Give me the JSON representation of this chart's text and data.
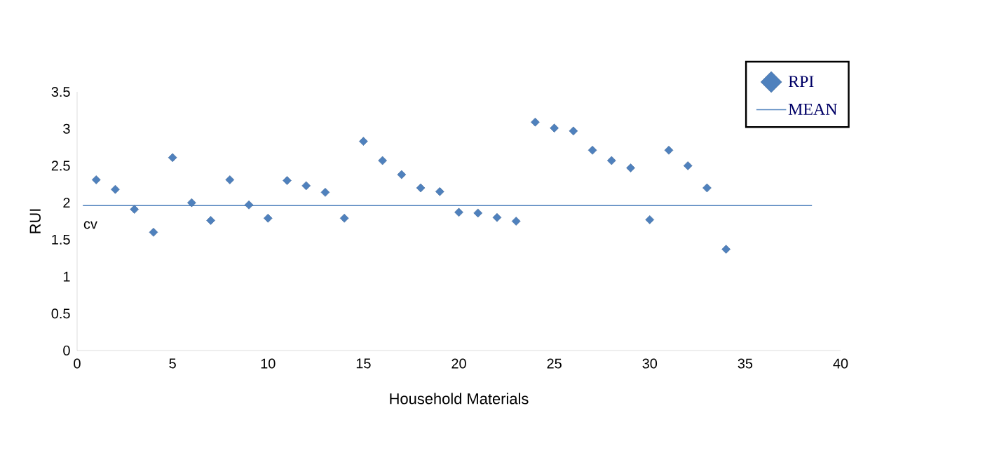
{
  "chart_data": {
    "type": "scatter",
    "xlabel": "Household Materials",
    "ylabel": "RUI",
    "xlim": [
      0,
      40
    ],
    "ylim": [
      0,
      3.5
    ],
    "xticks": [
      0,
      5,
      10,
      15,
      20,
      25,
      30,
      35,
      40
    ],
    "yticks": [
      0,
      0.5,
      1,
      1.5,
      2,
      2.5,
      3,
      3.5
    ],
    "legend": "top right",
    "annotations": [
      "cv"
    ],
    "series": [
      {
        "name": "RPI",
        "marker": "diamond",
        "color": "#4f81bd",
        "x": [
          1,
          2,
          3,
          4,
          5,
          6,
          7,
          8,
          9,
          10,
          11,
          12,
          13,
          14,
          15,
          16,
          17,
          18,
          19,
          20,
          21,
          22,
          23,
          24,
          25,
          26,
          27,
          28,
          29,
          30,
          31,
          32,
          33,
          34
        ],
        "values": [
          2.31,
          2.18,
          1.91,
          1.6,
          2.61,
          2.0,
          1.76,
          2.31,
          1.97,
          1.79,
          2.3,
          2.23,
          2.14,
          1.79,
          2.83,
          2.57,
          2.38,
          2.2,
          2.15,
          1.87,
          1.86,
          1.8,
          1.75,
          3.09,
          3.01,
          2.97,
          2.71,
          2.57,
          2.47,
          1.77,
          2.71,
          2.5,
          2.2,
          1.37
        ]
      },
      {
        "name": "MEAN",
        "type": "line",
        "marker": "none",
        "color": "#4f81bd",
        "x": [
          0.3,
          38.5
        ],
        "values": [
          1.96,
          1.96
        ]
      }
    ]
  }
}
